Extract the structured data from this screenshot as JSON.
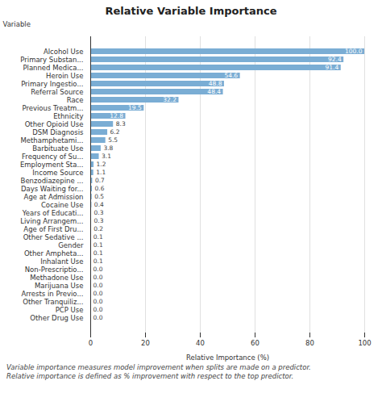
{
  "chart_data": {
    "type": "bar",
    "orientation": "horizontal",
    "title": "Relative Variable Importance",
    "xlabel": "Relative Importance (%)",
    "ylabel": "Variable",
    "footnote": "Variable importance measures model improvement when splits are made on a predictor.\nRelative importance is defined as % improvement with respect to the top predictor.",
    "categories": [
      "Other Drug Use",
      "PCP Use",
      "Other Tranquiliz...",
      "Arrests in Previo...",
      "Marijuana Use",
      "Methadone Use",
      "Non-Prescriptio...",
      "Inhalant Use",
      "Other Ampheta...",
      "Gender",
      "Other Sedative ...",
      "Age of First Dru...",
      "Living Arrangem...",
      "Years of Educati...",
      "Cocaine Use",
      "Age at Admission",
      "Days Waiting for...",
      "Benzodiazepine ...",
      "Income Source",
      "Employment Sta...",
      "Frequency of Su...",
      "Barbituate Use",
      "Methamphetami...",
      "DSM Diagnosis",
      "Other Opioid Use",
      "Ethnicity",
      "Previous Treatm...",
      "Race",
      "Referral Source",
      "Primary Ingestio...",
      "Heroin Use",
      "Planned Medica...",
      "Primary Substan...",
      "Alcohol Use"
    ],
    "values": [
      0.0,
      0.0,
      0.0,
      0.0,
      0.0,
      0.0,
      0.0,
      0.1,
      0.1,
      0.1,
      0.1,
      0.2,
      0.3,
      0.3,
      0.4,
      0.5,
      0.6,
      0.7,
      1.1,
      1.2,
      3.1,
      3.8,
      5.5,
      6.2,
      8.3,
      12.8,
      19.5,
      32.2,
      48.4,
      48.8,
      54.6,
      91.4,
      92.4,
      100.0
    ],
    "value_labels": [
      "0.0",
      "0.0",
      "0.0",
      "0.0",
      "0.0",
      "0.0",
      "0.0",
      "0.1",
      "0.1",
      "0.1",
      "0.1",
      "0.2",
      "0.3",
      "0.3",
      "0.4",
      "0.5",
      "0.6",
      "0.7",
      "1.1",
      "1.2",
      "3.1",
      "3.8",
      "5.5",
      "6.2",
      "8.3",
      "12.8",
      "19.5",
      "32.2",
      "48.4",
      "48.8",
      "54.6",
      "91.4",
      "92.4",
      "100.0"
    ],
    "data_labels": true,
    "color": "#7AADD4",
    "xlim": [
      0,
      100
    ],
    "xticks": [
      0,
      20,
      40,
      60,
      80,
      100
    ],
    "grid": true
  }
}
